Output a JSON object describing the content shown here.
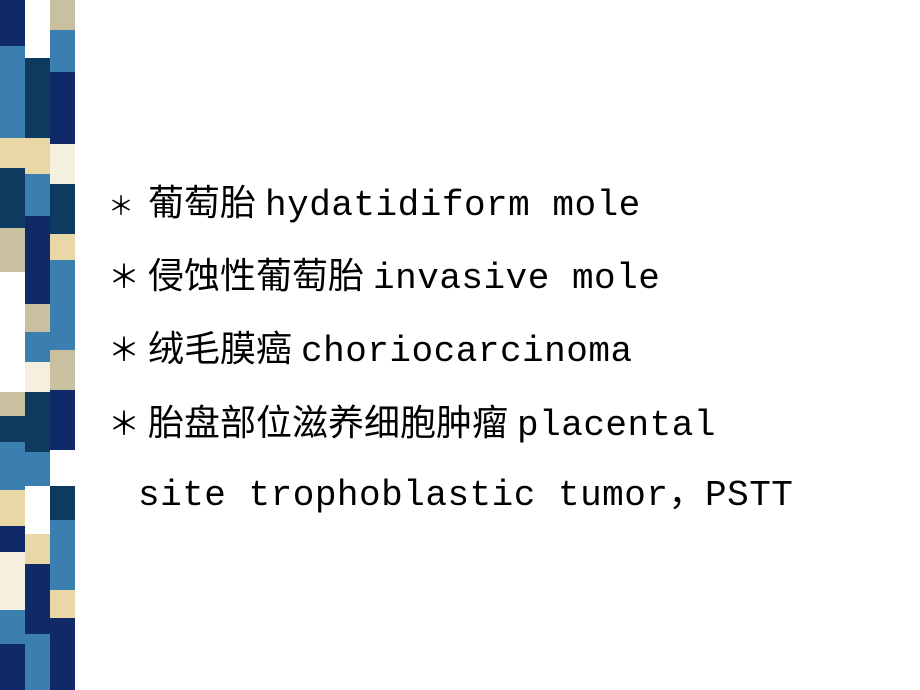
{
  "slide": {
    "background": "#ffffff",
    "text_color": "#000000",
    "font_size_pt": 28,
    "bullet_glyph": "＊",
    "items": [
      {
        "zh": "葡萄胎",
        "en": "hydatidiform  mole",
        "bullet_size": "small"
      },
      {
        "zh": "侵蚀性葡萄胎",
        "en": "invasive mole",
        "bullet_size": "normal"
      },
      {
        "zh": "绒毛膜癌",
        "en": "choriocarcinoma",
        "bullet_size": "normal"
      },
      {
        "zh": "胎盘部位滋养细胞肿瘤",
        "en": "placental",
        "bullet_size": "normal",
        "cont": "site trophoblastic tumor，PSTT"
      }
    ]
  },
  "sidebar": {
    "columns": [
      {
        "width": 25,
        "segments": [
          {
            "h": 46,
            "c": "#0f2a66"
          },
          {
            "h": 92,
            "c": "#3a7fb0"
          },
          {
            "h": 30,
            "c": "#e9d8a6"
          },
          {
            "h": 60,
            "c": "#0e3a5f"
          },
          {
            "h": 44,
            "c": "#c9c0a0"
          },
          {
            "h": 120,
            "c": "#ffffff"
          },
          {
            "h": 24,
            "c": "#c9c0a0"
          },
          {
            "h": 26,
            "c": "#0e3a5f"
          },
          {
            "h": 48,
            "c": "#3a7fb0"
          },
          {
            "h": 36,
            "c": "#e9d8a6"
          },
          {
            "h": 26,
            "c": "#0f2a66"
          },
          {
            "h": 58,
            "c": "#f5efe0"
          },
          {
            "h": 34,
            "c": "#3a7fb0"
          },
          {
            "h": 46,
            "c": "#0f2a66"
          }
        ]
      },
      {
        "width": 25,
        "segments": [
          {
            "h": 58,
            "c": "#ffffff"
          },
          {
            "h": 80,
            "c": "#0e3a5f"
          },
          {
            "h": 36,
            "c": "#e9d8a6"
          },
          {
            "h": 42,
            "c": "#3a7fb0"
          },
          {
            "h": 88,
            "c": "#0f2a66"
          },
          {
            "h": 28,
            "c": "#c9c0a0"
          },
          {
            "h": 30,
            "c": "#3a7fb0"
          },
          {
            "h": 30,
            "c": "#f5efe0"
          },
          {
            "h": 60,
            "c": "#0e3a5f"
          },
          {
            "h": 34,
            "c": "#3a7fb0"
          },
          {
            "h": 48,
            "c": "#ffffff"
          },
          {
            "h": 30,
            "c": "#e9d8a6"
          },
          {
            "h": 70,
            "c": "#0f2a66"
          },
          {
            "h": 56,
            "c": "#3a7fb0"
          }
        ]
      },
      {
        "width": 25,
        "segments": [
          {
            "h": 30,
            "c": "#c9c0a0"
          },
          {
            "h": 42,
            "c": "#3a7fb0"
          },
          {
            "h": 72,
            "c": "#0f2a66"
          },
          {
            "h": 40,
            "c": "#f5efe0"
          },
          {
            "h": 50,
            "c": "#0e3a5f"
          },
          {
            "h": 26,
            "c": "#e9d8a6"
          },
          {
            "h": 90,
            "c": "#3a7fb0"
          },
          {
            "h": 40,
            "c": "#c9c0a0"
          },
          {
            "h": 60,
            "c": "#0f2a66"
          },
          {
            "h": 36,
            "c": "#ffffff"
          },
          {
            "h": 34,
            "c": "#0e3a5f"
          },
          {
            "h": 70,
            "c": "#3a7fb0"
          },
          {
            "h": 28,
            "c": "#e9d8a6"
          },
          {
            "h": 72,
            "c": "#0f2a66"
          }
        ]
      }
    ]
  }
}
